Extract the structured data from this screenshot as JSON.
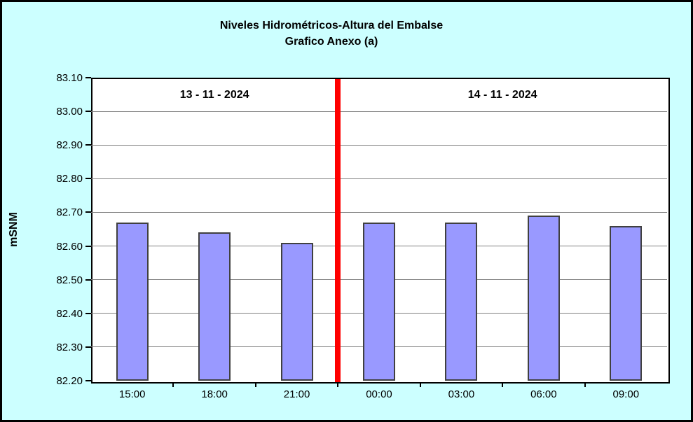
{
  "title": {
    "line1": "Niveles Hidrométricos-Altura del Embalse",
    "line2": "Grafico Anexo (a)"
  },
  "y_axis_title": "mSNM",
  "date_annotations": {
    "left": "13 - 11 - 2024",
    "right": "14 - 11 - 2024"
  },
  "chart_data": {
    "type": "bar",
    "title": "Niveles Hidrométricos-Altura del Embalse — Grafico Anexo (a)",
    "categories": [
      "15:00",
      "18:00",
      "21:00",
      "00:00",
      "03:00",
      "06:00",
      "09:00"
    ],
    "values": [
      82.67,
      82.64,
      82.61,
      82.67,
      82.67,
      82.69,
      82.66
    ],
    "xlabel": "",
    "ylabel": "mSNM",
    "ylim": [
      82.2,
      83.1
    ],
    "ytick_step": 0.1,
    "ytick_decimals": 2,
    "grid": true,
    "legend": "none",
    "divider": {
      "position_between": [
        "21:00",
        "00:00"
      ],
      "label_left": "13 - 11 - 2024",
      "label_right": "14 - 11 - 2024"
    }
  },
  "colors": {
    "background": "#CCFFFF",
    "plot-bg": "#FFFFFF",
    "bar-fill": "#9999FF",
    "bar-border": "#404040",
    "gridline": "#808080",
    "axis": "#000000",
    "divider": "#FF0000",
    "text": "#000000"
  }
}
